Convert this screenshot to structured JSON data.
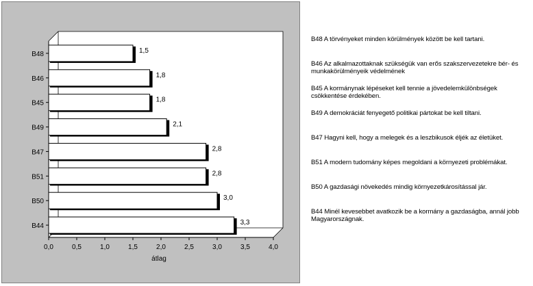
{
  "chart_data": {
    "type": "bar",
    "orientation": "horizontal",
    "categories": [
      "B48",
      "B46",
      "B45",
      "B49",
      "B47",
      "B51",
      "B50",
      "B44"
    ],
    "values": [
      1.5,
      1.8,
      1.8,
      2.1,
      2.8,
      2.8,
      3.0,
      3.3
    ],
    "value_labels": [
      "1,5",
      "1,8",
      "1,8",
      "2,1",
      "2,8",
      "2,8",
      "3,0",
      "3,3"
    ],
    "xlim": [
      0,
      4
    ],
    "x_ticks": [
      "0,0",
      "0,5",
      "1,0",
      "1,5",
      "2,0",
      "2,5",
      "3,0",
      "3,5",
      "4,0"
    ],
    "xlabel": "átlag",
    "ylabel": "",
    "grid": false,
    "legend_placement": "right",
    "colors": {
      "frame_bg": "#c0c0c0",
      "plot_bg": "#ffffff",
      "bar_fill": "#ffffff",
      "bar_edge": "#000000",
      "bar_shadow": "#000000"
    }
  },
  "legend": [
    "B48 A törvényeket minden körülmények között be kell tartani.",
    "B46 Az alkalmazottaknak szükségük van erős szakszervezetekre bér- és munkakörülményeik védelmének",
    "B45 A kormánynak lépéseket kell tennie a jövedelemkülönbségek csökkentése érdekében.",
    "B49 A demokráciát fenyegető politikai pártokat be kell tiltani.",
    "B47 Hagyni kell, hogy a melegek és a leszbikusok éljék az életüket.",
    "B51 A modern tudomány képes megoldani a környezeti problémákat.",
    "B50 A gazdasági növekedés mindig környezetkárosítással jár.",
    "B44 Minél kevesebbet avatkozik be a kormány a gazdaságba, annál jobb Magyarországnak."
  ]
}
